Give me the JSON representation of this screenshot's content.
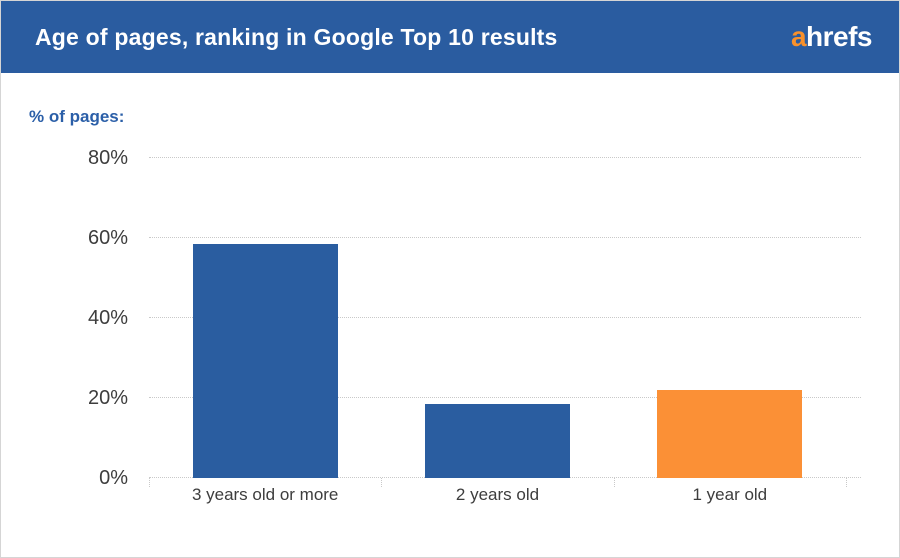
{
  "header": {
    "title": "Age of pages, ranking in Google Top 10 results",
    "logo_prefix": "a",
    "logo_suffix": "hrefs"
  },
  "colors": {
    "header_bg": "#2a5ca0",
    "logo_orange": "#f9912b",
    "bar_blue": "#2a5da0",
    "bar_orange": "#fb9036",
    "caption_blue": "#2b5fa8",
    "axis_text": "#3d3d3d",
    "gridline": "#c9c9c9"
  },
  "chart_data": {
    "type": "bar",
    "title": "Age of pages, ranking in Google Top 10 results",
    "y_axis_caption": "% of pages:",
    "categories": [
      "3 years old or more",
      "2 years old",
      "1 year old"
    ],
    "values": [
      58.5,
      18.5,
      22
    ],
    "unit": "%",
    "bar_colors": [
      "#2a5da0",
      "#2a5da0",
      "#fb9036"
    ],
    "y_ticks": [
      0,
      20,
      40,
      60,
      80
    ],
    "y_tick_labels": [
      "0%",
      "20%",
      "40%",
      "60%",
      "80%"
    ],
    "ylim": [
      0,
      80
    ],
    "grid": "horizontal-dotted",
    "legend": "none"
  }
}
